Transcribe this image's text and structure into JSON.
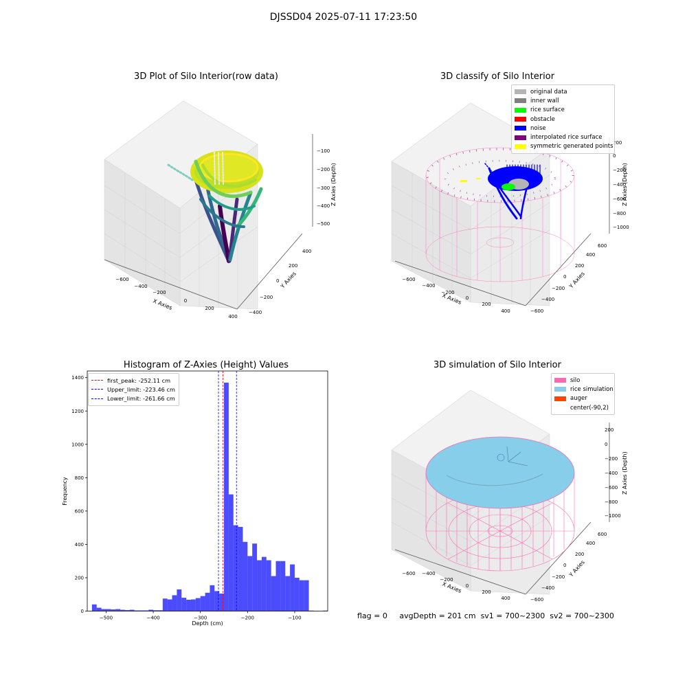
{
  "suptitle": "DJSSD04 2025-07-11 17:23:50",
  "panels": {
    "raw": {
      "title": "3D Plot of Silo Interior(row data)",
      "xlabel": "X Axies",
      "ylabel": "Y Axies",
      "zlabel": "Z Axies (Depth)",
      "xticks": [
        "−600",
        "−400",
        "−200",
        "0",
        "200",
        "400"
      ],
      "yticks": [
        "−400",
        "−200",
        "0",
        "200",
        "400"
      ],
      "zticks": [
        "−100",
        "−200",
        "−300",
        "−400",
        "−500"
      ]
    },
    "classify": {
      "title": "3D classify of Silo Interior",
      "xlabel": "X Axies",
      "ylabel": "Y Axies",
      "zlabel": "Z Axies (Depth)",
      "xticks": [
        "−600",
        "−400",
        "−200",
        "0",
        "200",
        "400"
      ],
      "yticks": [
        "−600",
        "−400",
        "−200",
        "0",
        "200",
        "400",
        "600"
      ],
      "zticks": [
        "200",
        "0",
        "−200",
        "−400",
        "−600",
        "−800",
        "−1000"
      ],
      "legend": [
        {
          "label": "original data",
          "color": "#b4b4b4"
        },
        {
          "label": "inner wall",
          "color": "#808080"
        },
        {
          "label": "rice surface",
          "color": "#00ff00"
        },
        {
          "label": "obstacle",
          "color": "#ff0000"
        },
        {
          "label": "noise",
          "color": "#0000ff"
        },
        {
          "label": "interpolated rice surface",
          "color": "#800080"
        },
        {
          "label": "symmetric generated points",
          "color": "#ffff00"
        }
      ]
    },
    "simulation": {
      "title": "3D simulation of Silo Interior",
      "xlabel": "X Axies",
      "ylabel": "Y Axies",
      "zlabel": "Z Axies (Depth)",
      "xticks": [
        "−600",
        "−400",
        "−200",
        "0",
        "200",
        "400"
      ],
      "yticks": [
        "−600",
        "−400",
        "−200",
        "0",
        "200",
        "400",
        "600"
      ],
      "zticks": [
        "200",
        "0",
        "−200",
        "−400",
        "−600",
        "−800",
        "−1000"
      ],
      "legend": [
        {
          "label": "silo",
          "color": "#ff69b4"
        },
        {
          "label": "rice simulation",
          "color": "#87ceeb"
        },
        {
          "label": "auger",
          "color": "#ff4500"
        },
        {
          "label": "center(-90,2)",
          "color": ""
        }
      ]
    }
  },
  "chart_data": {
    "type": "bar",
    "title": "Histogram of Z-Axies (Height) Values",
    "xlabel": "Depth (cm)",
    "ylabel": "Frequency",
    "xlim": [
      -540,
      -30
    ],
    "ylim": [
      0,
      1440
    ],
    "xticks": [
      -500,
      -400,
      -300,
      -200,
      -100
    ],
    "yticks": [
      0,
      200,
      400,
      600,
      800,
      1000,
      1200,
      1400
    ],
    "bar_color": "#0000ff",
    "bins": {
      "start": -530,
      "width": 10,
      "counts": [
        40,
        20,
        12,
        12,
        10,
        12,
        8,
        6,
        8,
        4,
        4,
        4,
        8,
        5,
        5,
        75,
        70,
        95,
        130,
        80,
        68,
        70,
        78,
        90,
        110,
        155,
        120,
        105,
        1370,
        700,
        515,
        505,
        415,
        330,
        405,
        305,
        325,
        305,
        210,
        300,
        300,
        210,
        280,
        200,
        185,
        185,
        3,
        1,
        0,
        3,
        0
      ]
    },
    "vlines": [
      {
        "label": "first_peak: -252.11 cm",
        "x": -252.11,
        "color": "#ff0000"
      },
      {
        "label": "Upper_limit: -223.46 cm",
        "x": -223.46,
        "color": "#0000ff"
      },
      {
        "label": "Lower_limit: -261.66 cm",
        "x": -261.66,
        "color": "#0000ff"
      }
    ],
    "legend_position": "upper-left"
  },
  "status": {
    "flag": "flag = 0",
    "avg_depth": "avgDepth = 201 cm",
    "sv1": "sv1 = 700~2300",
    "sv2": "sv2 = 700~2300"
  }
}
